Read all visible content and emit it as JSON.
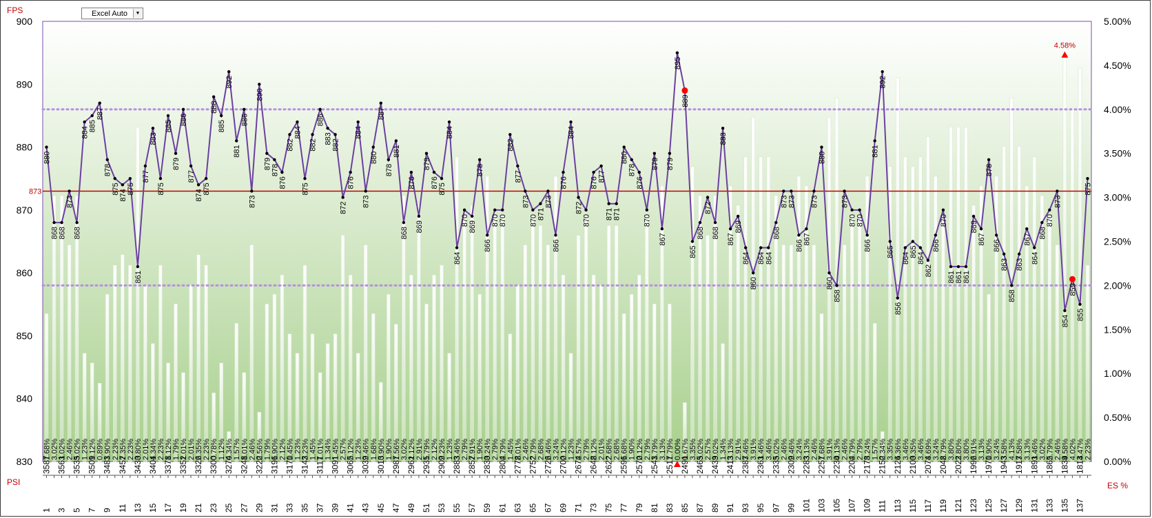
{
  "toolbar": {
    "dropdown_value": "Excel Auto"
  },
  "axis_labels": {
    "left": "FPS",
    "right": "ES %",
    "bottom_left": "PSI",
    "ref_line_value": "873"
  },
  "colors": {
    "line": "#6b3fa0",
    "ref_line": "#c00000",
    "reference_dotted": "#b68ee6",
    "marker": "#000000",
    "extreme_marker": "#ff0000",
    "label_red": "#c00000",
    "plot_bg_top": "#ffffff",
    "plot_bg_bottom": "#a8d08d"
  },
  "chart_data": {
    "type": "line",
    "title": "",
    "ylabel": "FPS",
    "y2label": "ES %",
    "xlabel": "PSI",
    "ylim": [
      830,
      900
    ],
    "y2lim": [
      0,
      5
    ],
    "y_ticks": [
      "830",
      "840",
      "850",
      "860",
      "870",
      "880",
      "890",
      "900"
    ],
    "y2_ticks": [
      "0.00%",
      "0.50%",
      "1.00%",
      "1.50%",
      "2.00%",
      "2.50%",
      "3.00%",
      "3.50%",
      "4.00%",
      "4.50%",
      "5.00%"
    ],
    "reference_line": 873,
    "reference_dotted": [
      858,
      886
    ],
    "max_es_label": "4.58%",
    "x": [
      1,
      2,
      3,
      4,
      5,
      6,
      7,
      8,
      9,
      10,
      11,
      12,
      13,
      14,
      15,
      16,
      17,
      18,
      19,
      20,
      21,
      22,
      23,
      24,
      25,
      26,
      27,
      28,
      29,
      30,
      31,
      32,
      33,
      34,
      35,
      36,
      37,
      38,
      39,
      40,
      41,
      42,
      43,
      44,
      45,
      46,
      47,
      48,
      49,
      50,
      51,
      52,
      53,
      54,
      55,
      56,
      57,
      58,
      59,
      60,
      61,
      62,
      63,
      64,
      65,
      66,
      67,
      68,
      69,
      70,
      71,
      72,
      73,
      74,
      75,
      76,
      77,
      78,
      79,
      80,
      81,
      82,
      83,
      84,
      85,
      86,
      87,
      88,
      89,
      90,
      91,
      92,
      93,
      94,
      95,
      96,
      97,
      98,
      99,
      100,
      101,
      102,
      103,
      104,
      105,
      106,
      107,
      108,
      109,
      110,
      111,
      112,
      113,
      114,
      115,
      116,
      117,
      118,
      119,
      120,
      121,
      122,
      123,
      124,
      125,
      126,
      127,
      128,
      129,
      130,
      131,
      132,
      133,
      134,
      135,
      136,
      137,
      138
    ],
    "fps": [
      880,
      868,
      868,
      873,
      868,
      884,
      885,
      887,
      878,
      875,
      874,
      875,
      861,
      877,
      883,
      875,
      885,
      879,
      886,
      877,
      874,
      875,
      888,
      885,
      892,
      881,
      886,
      873,
      890,
      879,
      878,
      876,
      882,
      884,
      875,
      882,
      886,
      883,
      882,
      872,
      876,
      884,
      873,
      880,
      887,
      878,
      881,
      868,
      876,
      869,
      879,
      876,
      875,
      884,
      864,
      870,
      869,
      878,
      866,
      870,
      870,
      882,
      877,
      873,
      870,
      871,
      873,
      866,
      876,
      884,
      872,
      870,
      876,
      877,
      871,
      871,
      880,
      878,
      876,
      870,
      879,
      867,
      879,
      895,
      889,
      865,
      868,
      872,
      868,
      883,
      867,
      869,
      864,
      860,
      864,
      864,
      868,
      873,
      873,
      866,
      867,
      873,
      880,
      860,
      858,
      873,
      870,
      870,
      866,
      881,
      892,
      865,
      856,
      864,
      865,
      864,
      862,
      866,
      870,
      861,
      861,
      861,
      869,
      867,
      878,
      866,
      863,
      858,
      863,
      867,
      864,
      868,
      870,
      873,
      854,
      859,
      855,
      875
    ],
    "es_percent": [
      1.68,
      3.02,
      3.02,
      2.46,
      3.02,
      1.23,
      1.12,
      0.89,
      1.9,
      2.23,
      2.35,
      2.23,
      3.8,
      2.01,
      1.34,
      2.23,
      1.12,
      1.79,
      1.01,
      2.01,
      2.35,
      2.23,
      0.78,
      1.12,
      0.34,
      1.57,
      1.01,
      2.46,
      0.56,
      1.79,
      1.9,
      2.12,
      1.45,
      1.23,
      2.23,
      1.45,
      1.01,
      1.34,
      1.45,
      2.57,
      2.12,
      1.23,
      2.46,
      1.68,
      0.9,
      1.9,
      1.56,
      3.02,
      2.12,
      2.91,
      1.79,
      2.12,
      2.23,
      1.23,
      3.46,
      2.79,
      2.91,
      1.9,
      3.24,
      2.79,
      2.79,
      1.45,
      2.01,
      2.46,
      2.79,
      2.68,
      2.46,
      3.24,
      2.12,
      1.23,
      2.57,
      2.79,
      2.12,
      2.01,
      2.68,
      2.68,
      1.68,
      1.9,
      2.12,
      2.79,
      1.79,
      3.13,
      1.79,
      0.0,
      0.67,
      3.35,
      3.02,
      2.57,
      3.02,
      1.34,
      3.13,
      2.91,
      3.46,
      3.91,
      3.46,
      3.46,
      3.02,
      2.46,
      2.46,
      3.24,
      3.13,
      2.46,
      1.68,
      3.91,
      4.13,
      2.46,
      2.79,
      2.79,
      3.24,
      1.57,
      0.34,
      3.35,
      4.36,
      3.46,
      3.35,
      3.46,
      3.69,
      3.24,
      2.79,
      3.8,
      3.8,
      3.8,
      2.91,
      3.13,
      1.9,
      3.24,
      3.58,
      4.13,
      3.58,
      3.13,
      3.46,
      3.02,
      2.79,
      2.46,
      4.58,
      4.02,
      4.47,
      2.23
    ],
    "psi": [
      3587,
      3561,
      3535,
      3509,
      3483,
      3457,
      3430,
      3404,
      3378,
      3352,
      3326,
      3300,
      3274,
      3248,
      3222,
      3196,
      3170,
      3143,
      3117,
      3091,
      3065,
      3039,
      3013,
      2987,
      2961,
      2935,
      2909,
      2883,
      2857,
      2830,
      2804,
      2778,
      2752,
      2726,
      2700,
      2674,
      2648,
      2622,
      2596,
      2570,
      2543,
      2517,
      2491,
      2465,
      2439,
      2413,
      2387,
      2361,
      2335,
      2309,
      2283,
      2257,
      2230,
      2204,
      2178,
      2152,
      2126,
      2100,
      2074,
      2048,
      2022,
      1996,
      1970,
      1943,
      1917,
      1891,
      1865,
      1839,
      1813
    ],
    "max_index": 84,
    "min_index": 135
  }
}
